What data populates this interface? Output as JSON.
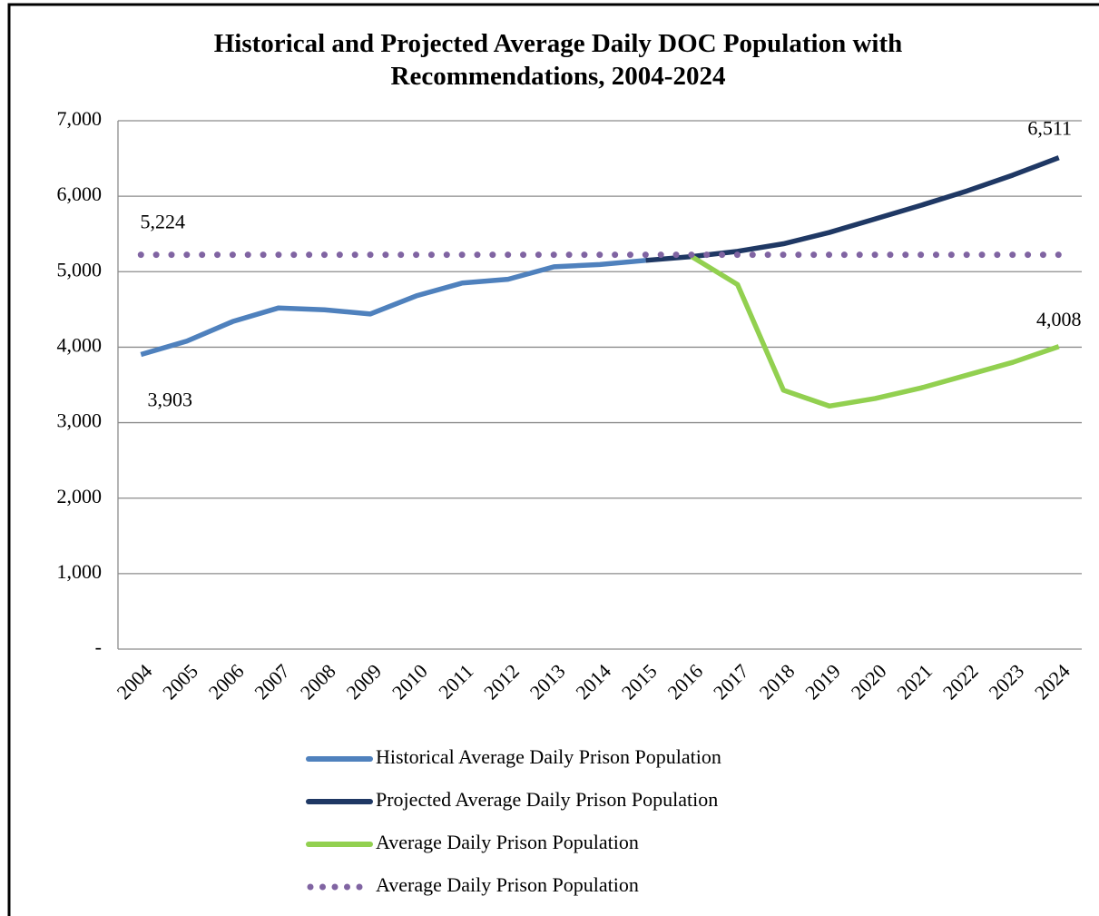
{
  "chart_data": {
    "type": "line",
    "title": "Historical and Projected Average Daily DOC Population with Recommendations, 2004-2024",
    "categories": [
      "2004",
      "2005",
      "2006",
      "2007",
      "2008",
      "2009",
      "2010",
      "2011",
      "2012",
      "2013",
      "2014",
      "2015",
      "2016",
      "2017",
      "2018",
      "2019",
      "2020",
      "2021",
      "2022",
      "2023",
      "2024"
    ],
    "series": [
      {
        "name": "Historical Average Daily Prison Population",
        "color": "#4f81bd",
        "style": "solid",
        "values": [
          3903,
          4080,
          4340,
          4520,
          4495,
          4440,
          4680,
          4850,
          4900,
          5065,
          5095,
          5150,
          null,
          null,
          null,
          null,
          null,
          null,
          null,
          null,
          null
        ],
        "value_labels": [
          "3,903",
          null,
          null,
          null,
          null,
          null,
          null,
          null,
          null,
          null,
          null,
          null,
          null,
          null,
          null,
          null,
          null,
          null,
          null,
          null,
          null
        ]
      },
      {
        "name": "Projected Average Daily Prison Population",
        "color": "#1f3864",
        "style": "solid",
        "values": [
          null,
          null,
          null,
          null,
          null,
          null,
          null,
          null,
          null,
          null,
          null,
          5150,
          5200,
          5270,
          5370,
          5520,
          5700,
          5880,
          6070,
          6280,
          6511
        ],
        "value_labels": [
          null,
          null,
          null,
          null,
          null,
          null,
          null,
          null,
          null,
          null,
          null,
          null,
          null,
          null,
          null,
          null,
          null,
          null,
          null,
          null,
          "6,511"
        ]
      },
      {
        "name": "Average Daily Prison Population",
        "color": "#92d050",
        "style": "solid",
        "values": [
          null,
          null,
          null,
          null,
          null,
          null,
          null,
          null,
          null,
          null,
          null,
          null,
          5200,
          4830,
          3430,
          3220,
          3320,
          3460,
          3630,
          3800,
          4008
        ],
        "value_labels": [
          null,
          null,
          null,
          null,
          null,
          null,
          null,
          null,
          null,
          null,
          null,
          null,
          null,
          null,
          null,
          null,
          null,
          null,
          null,
          null,
          "4,008"
        ]
      },
      {
        "name": "Average Daily Prison Population",
        "color": "#8064a2",
        "style": "dotted",
        "values": [
          5224,
          5224,
          5224,
          5224,
          5224,
          5224,
          5224,
          5224,
          5224,
          5224,
          5224,
          5224,
          5224,
          5224,
          5224,
          5224,
          5224,
          5224,
          5224,
          5224,
          5224
        ],
        "value_labels": [
          "5,224",
          null,
          null,
          null,
          null,
          null,
          null,
          null,
          null,
          null,
          null,
          null,
          null,
          null,
          null,
          null,
          null,
          null,
          null,
          null,
          null
        ]
      }
    ],
    "ylim": [
      0,
      7000
    ],
    "yticks": [
      {
        "value": 0,
        "label": "-"
      },
      {
        "value": 1000,
        "label": "1,000"
      },
      {
        "value": 2000,
        "label": "2,000"
      },
      {
        "value": 3000,
        "label": "3,000"
      },
      {
        "value": 4000,
        "label": "4,000"
      },
      {
        "value": 5000,
        "label": "5,000"
      },
      {
        "value": 6000,
        "label": "6,000"
      },
      {
        "value": 7000,
        "label": "7,000"
      }
    ],
    "grid": true,
    "legend": "bottom"
  }
}
